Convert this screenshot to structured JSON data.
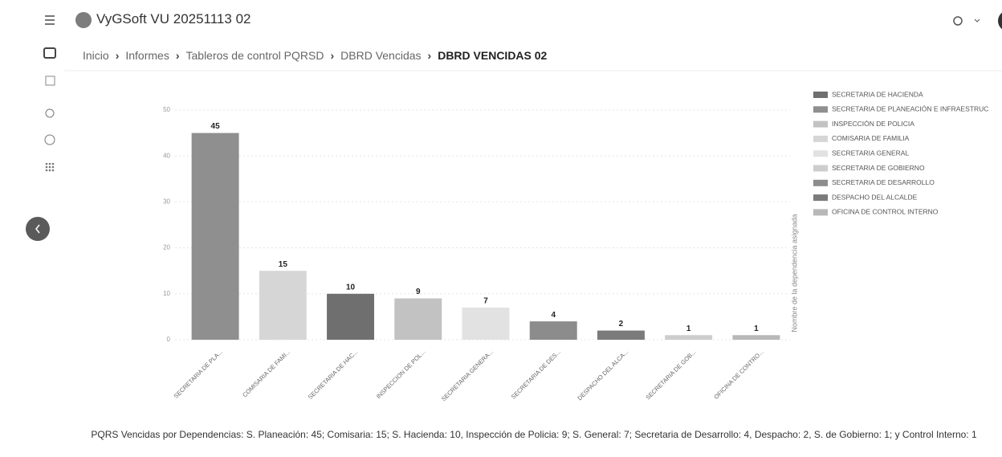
{
  "header": {
    "title": "VyGSoft VU 20251113 02"
  },
  "breadcrumb": [
    "Inicio",
    "Informes",
    "Tableros de control PQRSD",
    "DBRD Vencidas",
    "DBRD VENCIDAS 02"
  ],
  "chart_data": {
    "type": "bar",
    "categories": [
      "SECRETARIA DE PLA...",
      "COMISARIA DE FAMI...",
      "SECRETARIA DE HAC...",
      "INSPECCION DE POL...",
      "SECRETARIA GENERA...",
      "SECRETARIA DE DES...",
      "DESPACHO DEL ALCA...",
      "SECRETARIA DE GOB...",
      "OFICINA DE CONTRO..."
    ],
    "values": [
      45,
      15,
      10,
      9,
      7,
      4,
      2,
      1,
      1
    ],
    "colors": [
      "#8f8f8f",
      "#d6d6d6",
      "#6f6f6f",
      "#c2c2c2",
      "#e2e2e2",
      "#8c8c8c",
      "#7b7b7b",
      "#cdcdcd",
      "#b8b8b8"
    ],
    "ylim": [
      0,
      50
    ],
    "yticks": [
      0,
      10,
      20,
      30,
      40,
      50
    ],
    "grid": true,
    "y_label": "Nombre de la dependencia asignada",
    "legend": [
      {
        "name": "SECRETARIA DE HACIENDA",
        "color": "#6f6f6f"
      },
      {
        "name": "SECRETARIA DE PLANEACIÓN E INFRAESTRUC",
        "color": "#8f8f8f"
      },
      {
        "name": "INSPECCIÓN DE POLICIA",
        "color": "#c2c2c2"
      },
      {
        "name": "COMISARIA DE FAMILIA",
        "color": "#d6d6d6"
      },
      {
        "name": "SECRETARIA GENERAL",
        "color": "#e2e2e2"
      },
      {
        "name": "SECRETARIA DE GOBIERNO",
        "color": "#cdcdcd"
      },
      {
        "name": "SECRETARIA DE DESARROLLO",
        "color": "#8c8c8c"
      },
      {
        "name": "DESPACHO DEL ALCALDE",
        "color": "#7b7b7b"
      },
      {
        "name": "OFICINA DE CONTROL INTERNO",
        "color": "#b8b8b8"
      }
    ]
  },
  "caption": "PQRS Vencidas por Dependencias: S. Planeación: 45; Comisaria: 15;  S. Hacienda: 10, Inspección de Policia: 9;  S. General: 7; Secretaria de Desarrollo: 4, Despacho: 2, S. de Gobierno: 1; y Control Interno: 1"
}
